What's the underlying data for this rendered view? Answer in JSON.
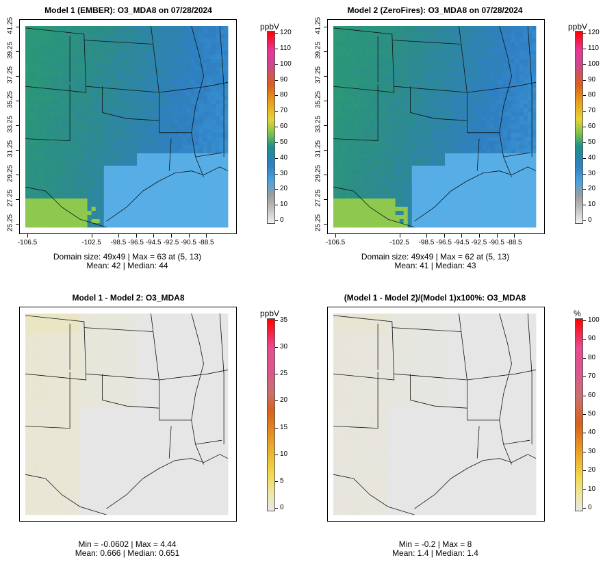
{
  "panels": [
    {
      "title": "Model 1 (EMBER): O3_MDA8 on 07/28/2024",
      "unit": "ppbV",
      "stats1": "Domain size: 49x49 | Max = 63 at (5, 13)",
      "stats2": "Mean: 42 |  Median: 44",
      "scale": "abs",
      "yticks": [
        "41.25",
        "39.25",
        "37.25",
        "35.25",
        "33.25",
        "31.25",
        "29.25",
        "27.25",
        "25.25"
      ],
      "xticks": [
        "-106.5",
        "-102.5",
        "-98.5",
        "-96.5",
        "-94.5",
        "-92.5",
        "-90.5",
        "-88.5"
      ],
      "cticks": [
        "120",
        "110",
        "100",
        "90",
        "80",
        "70",
        "60",
        "50",
        "40",
        "30",
        "20",
        "10",
        "0"
      ]
    },
    {
      "title": "Model 2 (ZeroFires): O3_MDA8 on 07/28/2024",
      "unit": "ppbV",
      "stats1": "Domain size: 49x49 | Max = 62 at (5, 13)",
      "stats2": "Mean: 41 |  Median: 43",
      "scale": "abs",
      "yticks": [
        "41.25",
        "39.25",
        "37.25",
        "35.25",
        "33.25",
        "31.25",
        "29.25",
        "27.25",
        "25.25"
      ],
      "xticks": [
        "-106.5",
        "-102.5",
        "-98.5",
        "-96.5",
        "-94.5",
        "-92.5",
        "-90.5",
        "-88.5"
      ],
      "cticks": [
        "120",
        "110",
        "100",
        "90",
        "80",
        "70",
        "60",
        "50",
        "40",
        "30",
        "20",
        "10",
        "0"
      ]
    },
    {
      "title": "Model 1 - Model 2: O3_MDA8",
      "unit": "ppbV",
      "stats1": "Min = -0.0602 | Max = 4.44",
      "stats2": "Mean: 0.666 |  Median: 0.651",
      "scale": "diff",
      "cticks": [
        "35",
        "30",
        "25",
        "20",
        "15",
        "10",
        "5",
        "0"
      ]
    },
    {
      "title": "(Model 1 - Model 2)/(Model 1)x100%: O3_MDA8",
      "unit": "%",
      "stats1": "Min = -0.2 | Max = 8",
      "stats2": "Mean: 1.4 |  Median: 1.4",
      "scale": "pct",
      "cticks": [
        "100",
        "90",
        "80",
        "70",
        "60",
        "50",
        "40",
        "30",
        "20",
        "10",
        "0"
      ]
    }
  ],
  "colors": {
    "ocean": "#57aee6",
    "land_high": "#2a9a6e",
    "land_mid": "#2d82c4",
    "diff_base": "#e6e6e6",
    "diff_tint": "#e9e5cf"
  }
}
